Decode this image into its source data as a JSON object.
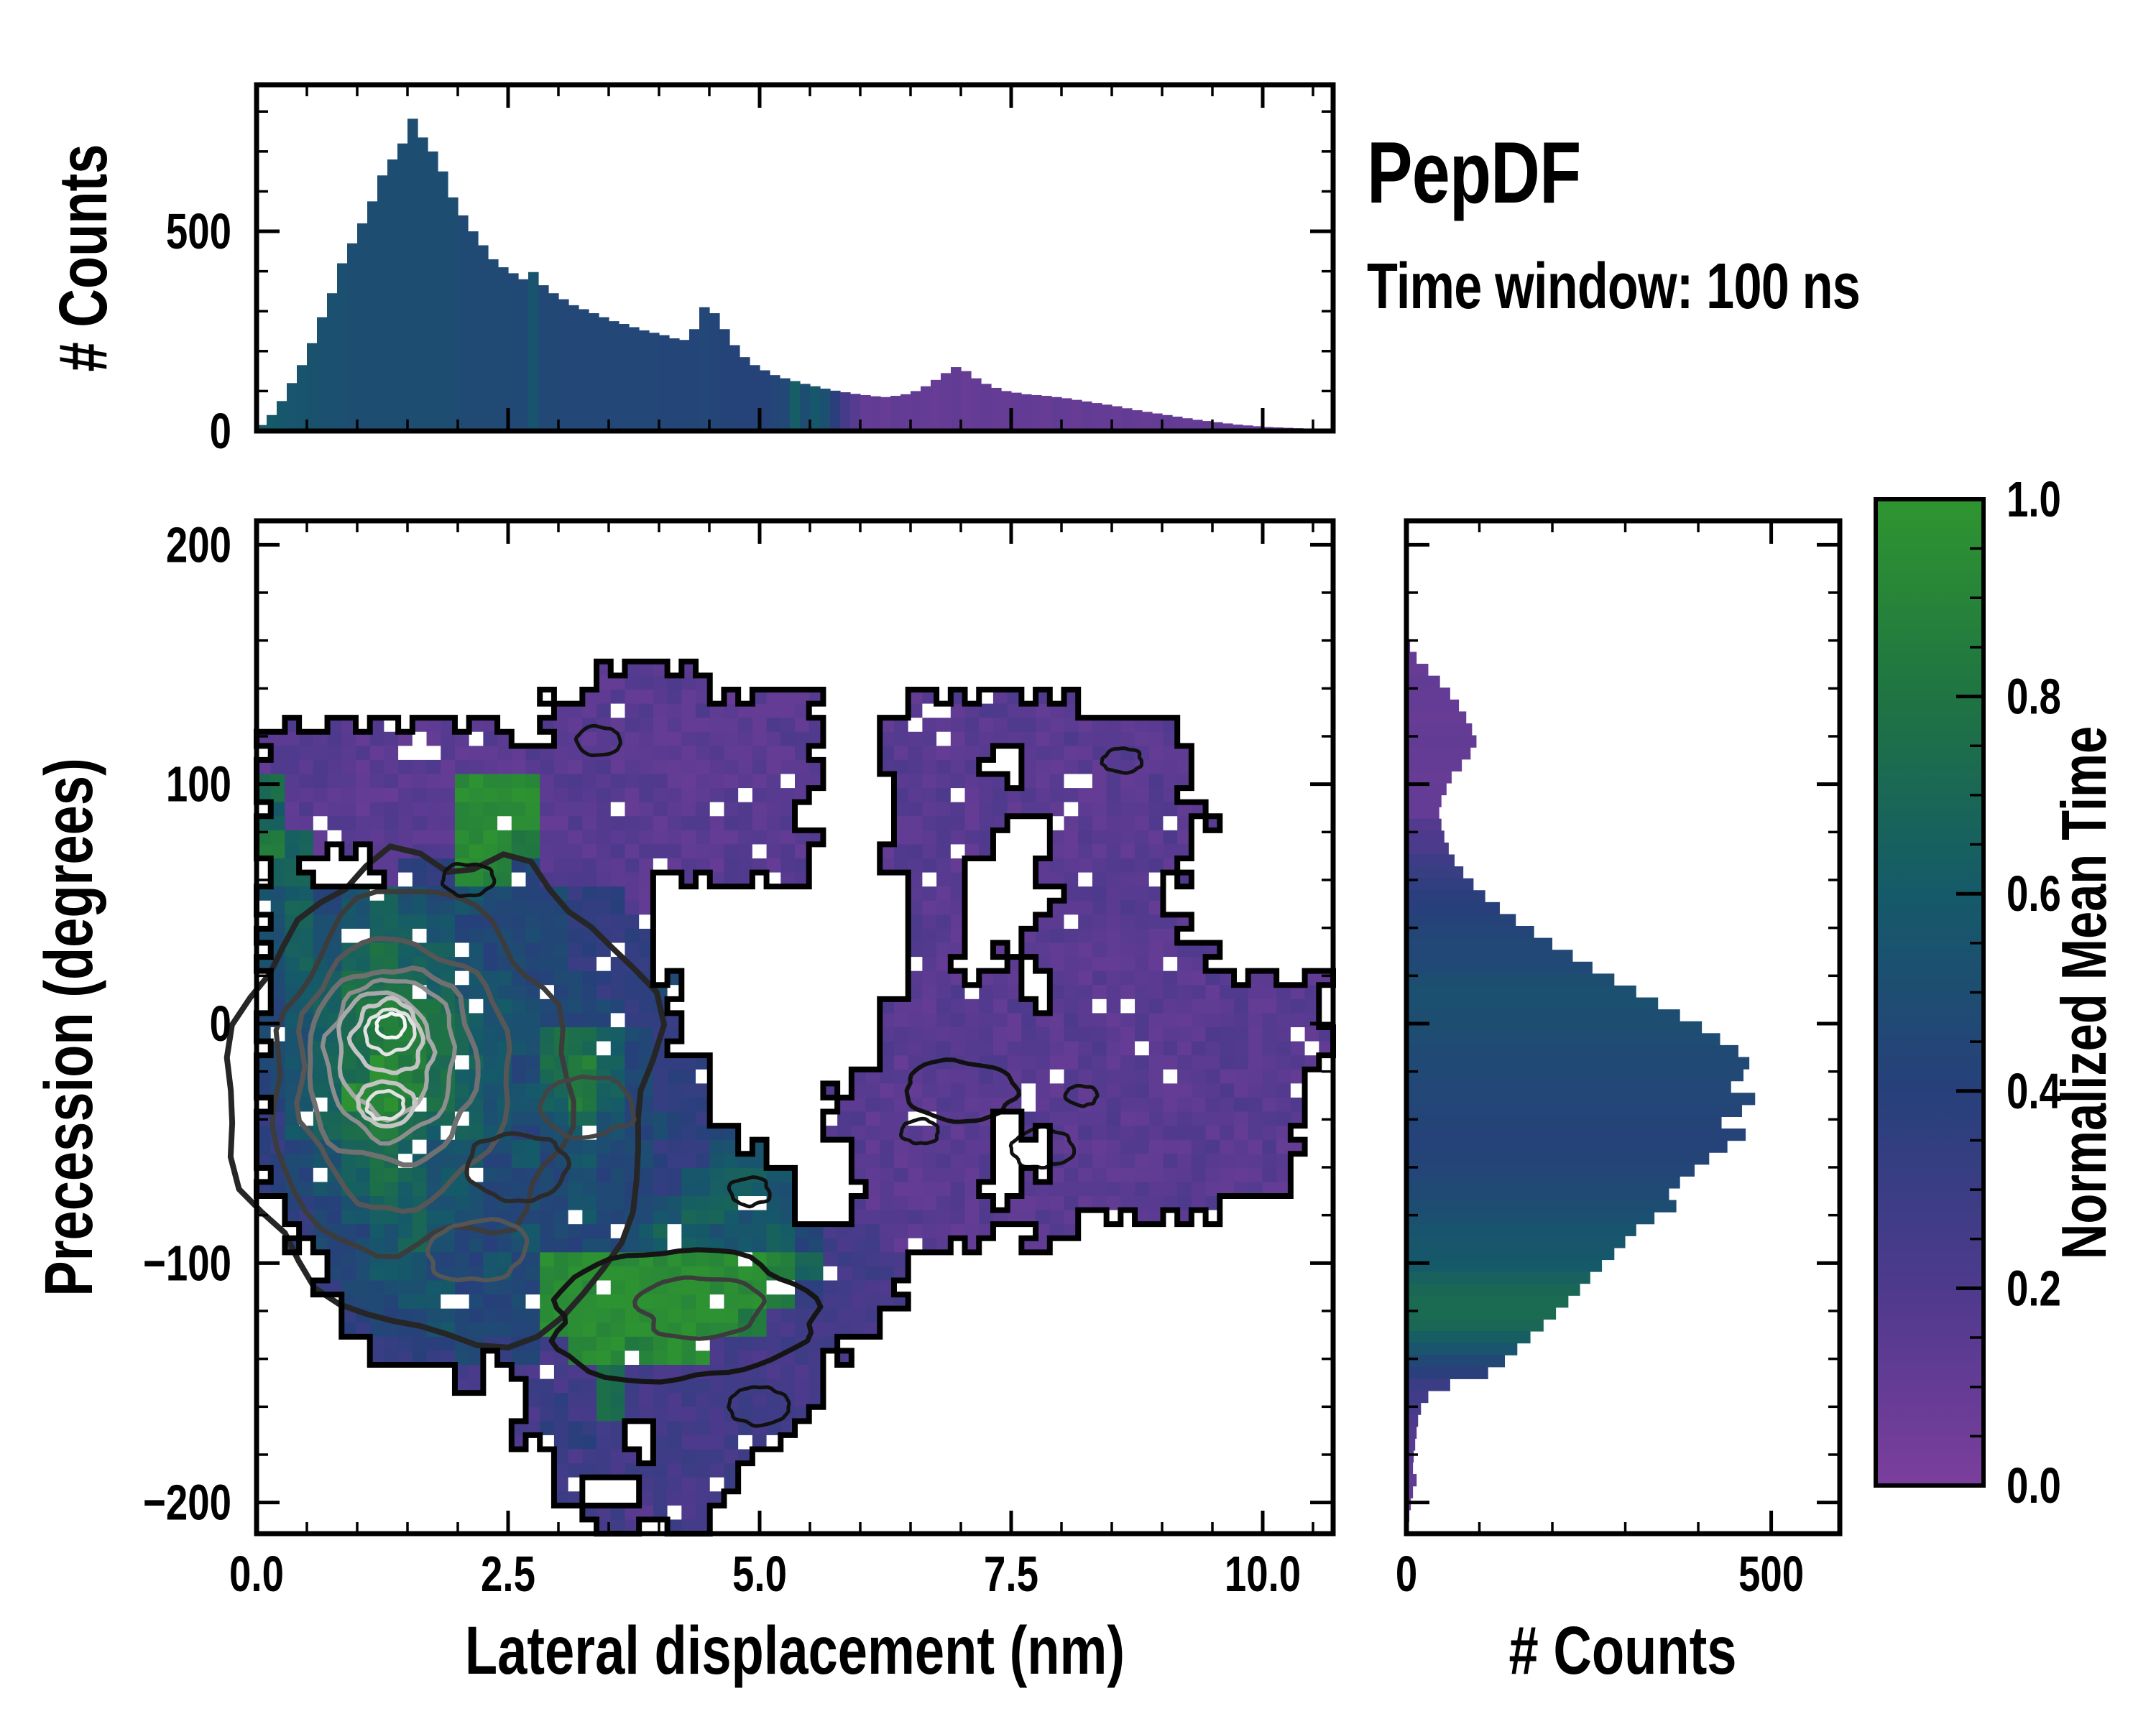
{
  "chart_data": {
    "type": "heatmap",
    "title": "PepDF",
    "subtitle": "Time window: 100 ns",
    "colormap": {
      "label": "Normalized Mean Time",
      "range": [
        0.0,
        1.0
      ],
      "ticks": [
        {
          "v": 0.0,
          "label": "0.0"
        },
        {
          "v": 0.2,
          "label": "0.2"
        },
        {
          "v": 0.4,
          "label": "0.4"
        },
        {
          "v": 0.6,
          "label": "0.6"
        },
        {
          "v": 0.8,
          "label": "0.8"
        },
        {
          "v": 1.0,
          "label": "1.0"
        }
      ],
      "minor_step": 0.05,
      "stops": [
        [
          0.0,
          "#7b3e9c"
        ],
        [
          0.2,
          "#4e3a8d"
        ],
        [
          0.4,
          "#27407b"
        ],
        [
          0.6,
          "#155a69"
        ],
        [
          0.8,
          "#1f7442"
        ],
        [
          1.0,
          "#2f9530"
        ]
      ]
    },
    "main": {
      "xlabel": "Lateral displacement (nm)",
      "ylabel": "Precession (degrees)",
      "xlim": [
        0,
        10.7
      ],
      "ylim": [
        -213,
        210
      ],
      "x_ticks": [
        {
          "v": 0,
          "label": "0.0"
        },
        {
          "v": 2.5,
          "label": "2.5"
        },
        {
          "v": 5,
          "label": "5.0"
        },
        {
          "v": 7.5,
          "label": "7.5"
        },
        {
          "v": 10,
          "label": "10.0"
        }
      ],
      "y_ticks": [
        {
          "v": 200,
          "label": "200"
        },
        {
          "v": 100,
          "label": "100"
        },
        {
          "v": 0,
          "label": "0"
        },
        {
          "v": -100,
          "label": "−100"
        },
        {
          "v": -200,
          "label": "−200"
        }
      ],
      "x_minor_step": 0.5,
      "y_minor_step": 20,
      "grid": {
        "cols": 38,
        "rows": 36,
        "x_range": [
          0,
          10.7
        ],
        "y_range": [
          210,
          -213
        ],
        "value_encoding": "digit d -> normalized mean time = d*0.1+0.05 ; '.' = no data",
        "cells": [
          "......................................",
          "......................................",
          "......................................",
          "......................................",
          "......................................",
          "............1111......................",
          "..........1111111111...111111.........",
          "111111111.1111111111..11111111111.....",
          "11111111111111111111..1111.111111.....",
          "71111119991111111111..11111111111.....",
          "6111111999111111111...111111111111....",
          "86111119981111111111..1111..11111.....",
          "66..1339841111111111..111..111111.....",
          "56456545444331.........11...1111......",
          "56556654444333.........11..111111.....",
          "56567665444333.........11.11111111....",
          "456777655444334........1111.1111111111",
          "456788765544433.......1111111111111111",
          "456788765577643.......1111111111111111",
          "4567987654786433.....11111111111111111",
          "4569987655686433....11111111111111111.",
          "35678766545654434...111111.1111111111.",
          "345676554545443355...11111..111111111.",
          "3456765544454435665..11111.1111111111.",
          ".345665544454456655..1111111111111....",
          ".3445654454445665564221111.11.........",
          "..445544549999999986222...............",
          "..34455444999999998 3222...............",
          "...3445444999999982222................",
          "....333434299899 22222.................",
          ".......2.2227 2222222.................",
          ".........232722222 22..................",
          ".........2332.22222...................",
          "..........22222222....................",
          "..........22.2222.....................",
          "...........22122......................"
        ]
      },
      "contour_rings": [
        {
          "cx": 1.9,
          "cy": -28,
          "rx": 2.05,
          "ry": 98,
          "color": "#262626",
          "w": 8,
          "seed": 11
        },
        {
          "cx": 1.6,
          "cy": -22,
          "rx": 1.45,
          "ry": 74,
          "color": "#3c3c3c",
          "w": 7,
          "seed": 22
        },
        {
          "cx": 1.45,
          "cy": -18,
          "rx": 1.05,
          "ry": 56,
          "color": "#565656",
          "w": 7,
          "seed": 33
        },
        {
          "cx": 1.35,
          "cy": -16,
          "rx": 0.82,
          "ry": 43,
          "color": "#707070",
          "w": 7,
          "seed": 44
        },
        {
          "cx": 1.32,
          "cy": -14,
          "rx": 0.64,
          "ry": 33,
          "color": "#8d8d8d",
          "w": 6,
          "seed": 55
        },
        {
          "cx": 1.3,
          "cy": -12,
          "rx": 0.49,
          "ry": 25,
          "color": "#a8a8a8",
          "w": 6,
          "seed": 66
        },
        {
          "cx": 1.3,
          "cy": -6,
          "rx": 0.36,
          "ry": 15,
          "color": "#c4c4c4",
          "w": 6,
          "seed": 77
        },
        {
          "cx": 1.28,
          "cy": -33,
          "rx": 0.28,
          "ry": 9,
          "color": "#c4c4c4",
          "w": 6,
          "seed": 88
        },
        {
          "cx": 1.32,
          "cy": -3,
          "rx": 0.24,
          "ry": 9,
          "color": "#e2e2e2",
          "w": 5,
          "seed": 99
        },
        {
          "cx": 1.28,
          "cy": -34,
          "rx": 0.18,
          "ry": 6,
          "color": "#e2e2e2",
          "w": 5,
          "seed": 101
        },
        {
          "cx": 1.33,
          "cy": -1,
          "rx": 0.14,
          "ry": 5,
          "color": "#f5f5f5",
          "w": 5,
          "seed": 113
        },
        {
          "cx": 2.6,
          "cy": -60,
          "rx": 0.5,
          "ry": 14,
          "color": "#2b2b2b",
          "w": 6,
          "seed": 7
        },
        {
          "cx": 3.3,
          "cy": -35,
          "rx": 0.45,
          "ry": 12,
          "color": "#444444",
          "w": 6,
          "seed": 8
        },
        {
          "cx": 2.2,
          "cy": -95,
          "rx": 0.5,
          "ry": 13,
          "color": "#555555",
          "w": 6,
          "seed": 9
        },
        {
          "cx": 4.2,
          "cy": -122,
          "rx": 1.3,
          "ry": 26,
          "color": "#151515",
          "w": 7,
          "seed": 10
        },
        {
          "cx": 4.4,
          "cy": -118,
          "rx": 0.6,
          "ry": 13,
          "color": "#3c3c3c",
          "w": 6,
          "seed": 12
        },
        {
          "cx": 7.0,
          "cy": -28,
          "rx": 0.55,
          "ry": 13,
          "color": "#111111",
          "w": 6,
          "seed": 13
        },
        {
          "cx": 7.8,
          "cy": -52,
          "rx": 0.3,
          "ry": 8,
          "color": "#111111",
          "w": 5,
          "seed": 14
        },
        {
          "cx": 3.4,
          "cy": 118,
          "rx": 0.22,
          "ry": 6,
          "color": "#111111",
          "w": 5,
          "seed": 15
        },
        {
          "cx": 8.6,
          "cy": 110,
          "rx": 0.2,
          "ry": 5,
          "color": "#111111",
          "w": 5,
          "seed": 16
        },
        {
          "cx": 2.1,
          "cy": 60,
          "rx": 0.25,
          "ry": 7,
          "color": "#111111",
          "w": 5,
          "seed": 17
        },
        {
          "cx": 5.0,
          "cy": -160,
          "rx": 0.3,
          "ry": 8,
          "color": "#111111",
          "w": 5,
          "seed": 18
        },
        {
          "cx": 6.6,
          "cy": -45,
          "rx": 0.18,
          "ry": 5,
          "color": "#111111",
          "w": 5,
          "seed": 19
        },
        {
          "cx": 8.2,
          "cy": -30,
          "rx": 0.15,
          "ry": 4,
          "color": "#111111",
          "w": 5,
          "seed": 20
        },
        {
          "cx": 4.9,
          "cy": -70,
          "rx": 0.2,
          "ry": 6,
          "color": "#111111",
          "w": 5,
          "seed": 21
        }
      ]
    },
    "top_hist": {
      "ylabel": "# Counts",
      "y_ticks": [
        {
          "v": 0,
          "label": "0"
        },
        {
          "v": 500,
          "label": "500"
        }
      ],
      "y_minor_step": 100,
      "ylim": [
        0,
        867
      ],
      "bin_width": 0.1,
      "x_start": 0,
      "counts": [
        15,
        40,
        75,
        120,
        165,
        220,
        285,
        345,
        420,
        470,
        520,
        575,
        640,
        680,
        720,
        782,
        735,
        700,
        650,
        585,
        540,
        500,
        465,
        430,
        410,
        395,
        380,
        398,
        365,
        345,
        330,
        315,
        305,
        295,
        285,
        275,
        268,
        260,
        252,
        246,
        240,
        232,
        228,
        255,
        310,
        295,
        255,
        215,
        185,
        165,
        152,
        140,
        132,
        125,
        118,
        112,
        106,
        101,
        97,
        93,
        90,
        87,
        85,
        88,
        92,
        100,
        112,
        128,
        145,
        160,
        150,
        132,
        118,
        108,
        100,
        96,
        92,
        90,
        88,
        85,
        82,
        78,
        74,
        70,
        66,
        62,
        57,
        52,
        48,
        44,
        40,
        36,
        32,
        28,
        25,
        22,
        19,
        16,
        14,
        12,
        10,
        9,
        8,
        7,
        6,
        5,
        4
      ],
      "mean_time": [
        0.62,
        0.6,
        0.58,
        0.56,
        0.55,
        0.54,
        0.53,
        0.52,
        0.52,
        0.51,
        0.51,
        0.5,
        0.5,
        0.5,
        0.5,
        0.5,
        0.5,
        0.5,
        0.5,
        0.5,
        0.48,
        0.48,
        0.48,
        0.48,
        0.48,
        0.47,
        0.47,
        0.55,
        0.46,
        0.46,
        0.45,
        0.45,
        0.45,
        0.45,
        0.45,
        0.45,
        0.45,
        0.45,
        0.45,
        0.45,
        0.44,
        0.44,
        0.44,
        0.44,
        0.45,
        0.44,
        0.43,
        0.42,
        0.42,
        0.42,
        0.42,
        0.44,
        0.46,
        0.62,
        0.5,
        0.58,
        0.52,
        0.38,
        0.24,
        0.16,
        0.1,
        0.11,
        0.09,
        0.12,
        0.1,
        0.11,
        0.1,
        0.09,
        0.1,
        0.11,
        0.09,
        0.1,
        0.11,
        0.1,
        0.09,
        0.1,
        0.11,
        0.1,
        0.09,
        0.12,
        0.1,
        0.09,
        0.11,
        0.1,
        0.1,
        0.09,
        0.11,
        0.1,
        0.09,
        0.1,
        0.11,
        0.1,
        0.09,
        0.1,
        0.1,
        0.11,
        0.09,
        0.1,
        0.1,
        0.09,
        0.1,
        0.11,
        0.1,
        0.09,
        0.1,
        0.1,
        0.1
      ]
    },
    "right_hist": {
      "xlabel": "# Counts",
      "x_ticks": [
        {
          "v": 0,
          "label": "0"
        },
        {
          "v": 500,
          "label": "500"
        }
      ],
      "x_minor_step": 100,
      "xlim": [
        0,
        594
      ],
      "bin_width": 5,
      "y_start": 210,
      "counts": [
        0,
        0,
        0,
        0,
        0,
        0,
        0,
        0,
        0,
        0,
        5,
        14,
        30,
        46,
        60,
        72,
        82,
        90,
        96,
        88,
        76,
        62,
        55,
        48,
        45,
        48,
        52,
        58,
        66,
        78,
        92,
        108,
        128,
        150,
        175,
        200,
        228,
        255,
        285,
        315,
        345,
        375,
        405,
        430,
        455,
        470,
        462,
        445,
        478,
        460,
        432,
        465,
        440,
        415,
        395,
        375,
        360,
        370,
        340,
        315,
        300,
        285,
        268,
        252,
        238,
        222,
        205,
        188,
        170,
        152,
        135,
        112,
        60,
        30,
        20,
        16,
        14,
        12,
        10,
        9,
        14,
        9,
        6,
        4,
        3
      ],
      "mean_time": [
        0.1,
        0.1,
        0.1,
        0.1,
        0.1,
        0.1,
        0.1,
        0.1,
        0.1,
        0.1,
        0.1,
        0.1,
        0.09,
        0.11,
        0.1,
        0.1,
        0.09,
        0.1,
        0.11,
        0.1,
        0.1,
        0.09,
        0.1,
        0.1,
        0.1,
        0.18,
        0.2,
        0.22,
        0.28,
        0.32,
        0.35,
        0.38,
        0.4,
        0.42,
        0.44,
        0.45,
        0.46,
        0.47,
        0.5,
        0.52,
        0.52,
        0.51,
        0.5,
        0.49,
        0.48,
        0.47,
        0.46,
        0.45,
        0.45,
        0.44,
        0.43,
        0.42,
        0.42,
        0.43,
        0.44,
        0.46,
        0.48,
        0.5,
        0.52,
        0.55,
        0.57,
        0.58,
        0.6,
        0.65,
        0.7,
        0.72,
        0.72,
        0.7,
        0.63,
        0.56,
        0.46,
        0.38,
        0.3,
        0.27,
        0.24,
        0.2,
        0.18,
        0.16,
        0.15,
        0.14,
        0.12,
        0.11,
        0.1,
        0.1,
        0.1
      ]
    }
  }
}
